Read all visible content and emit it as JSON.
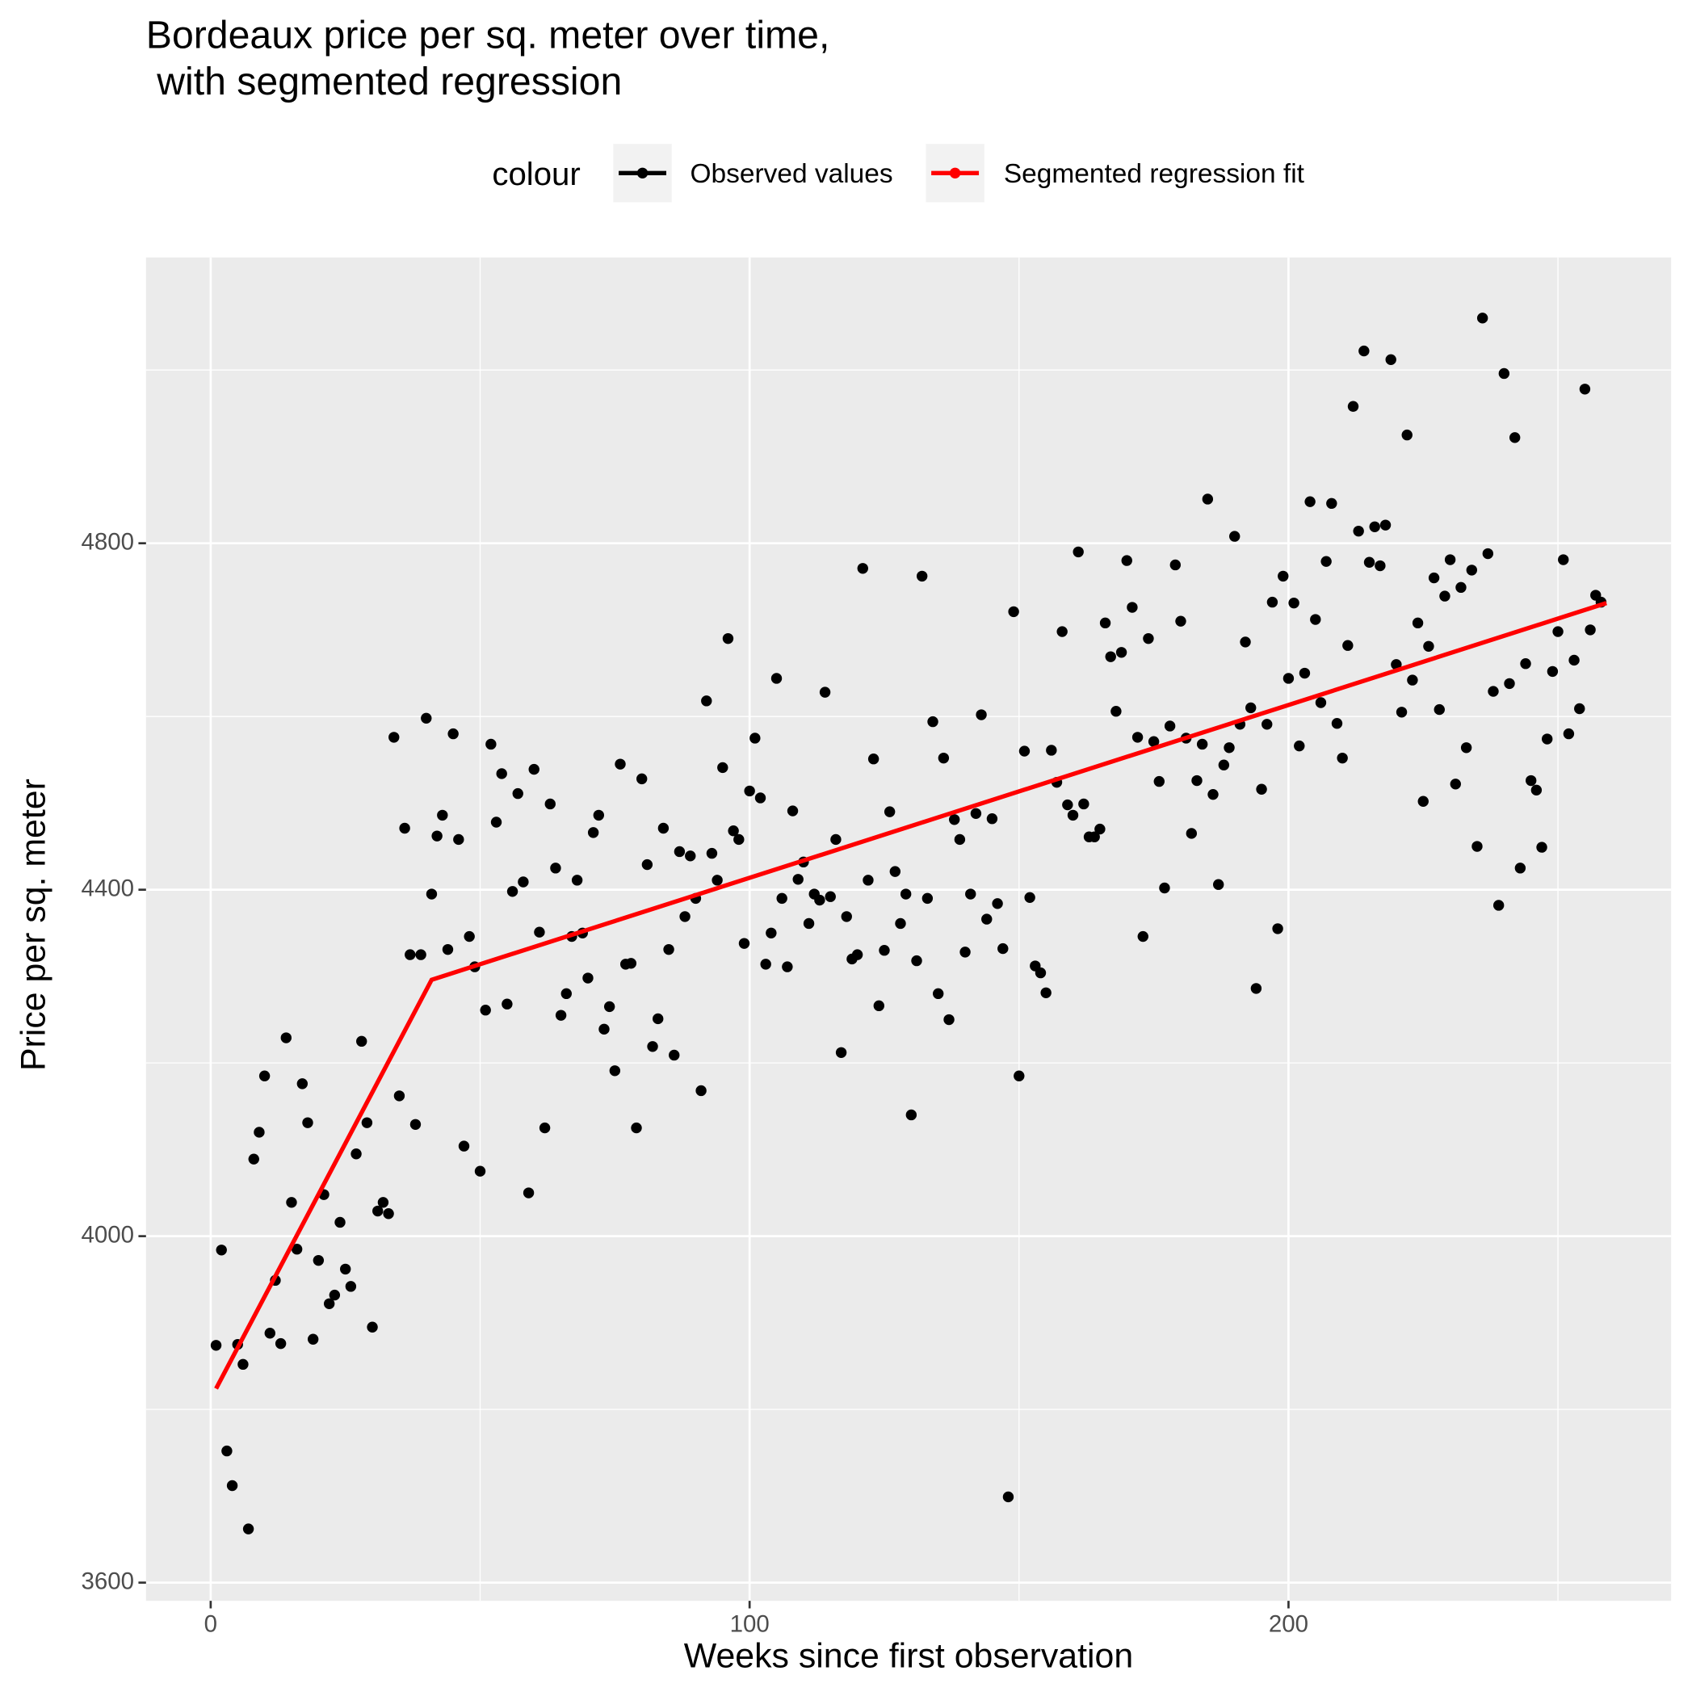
{
  "chart_data": {
    "type": "scatter",
    "title": [
      "Bordeaux price per sq. meter over time,",
      " with segmented regression"
    ],
    "x_label": "Weeks since first observation",
    "y_label": "Price per sq. meter",
    "legend_title": "colour",
    "legend_position": "top",
    "xlim": [
      -12,
      271
    ],
    "ylim": [
      3579,
      5130
    ],
    "xticks": [
      0,
      100,
      200
    ],
    "yticks": [
      3600,
      4000,
      4400,
      4800
    ],
    "x_minor_grid": [
      50,
      150,
      250
    ],
    "y_minor_grid": [
      3800,
      4200,
      4600,
      5000
    ],
    "grid": true,
    "series": [
      {
        "name": "Observed values",
        "color": "#000000",
        "mode": "points",
        "x": [
          1,
          2,
          3,
          4,
          5,
          6,
          7,
          8,
          9,
          10,
          11,
          12,
          13,
          14,
          15,
          16,
          17,
          18,
          19,
          20,
          21,
          22,
          23,
          24,
          25,
          26,
          27,
          28,
          29,
          30,
          31,
          32,
          33,
          34,
          35,
          36,
          37,
          38,
          39,
          40,
          41,
          42,
          43,
          44,
          45,
          46,
          47,
          48,
          49,
          50,
          51,
          52,
          53,
          54,
          55,
          56,
          57,
          58,
          59,
          60,
          61,
          62,
          63,
          64,
          65,
          66,
          67,
          68,
          69,
          70,
          71,
          72,
          73,
          74,
          75,
          76,
          77,
          78,
          79,
          80,
          81,
          82,
          83,
          84,
          85,
          86,
          87,
          88,
          89,
          90,
          91,
          92,
          93,
          94,
          95,
          96,
          97,
          98,
          99,
          100,
          101,
          102,
          103,
          104,
          105,
          106,
          107,
          108,
          109,
          110,
          111,
          112,
          113,
          114,
          115,
          116,
          117,
          118,
          119,
          120,
          121,
          122,
          123,
          124,
          125,
          126,
          127,
          128,
          129,
          130,
          131,
          132,
          133,
          134,
          135,
          136,
          137,
          138,
          139,
          140,
          141,
          142,
          143,
          144,
          145,
          146,
          147,
          148,
          149,
          150,
          151,
          152,
          153,
          154,
          155,
          156,
          157,
          158,
          159,
          160,
          161,
          162,
          163,
          164,
          165,
          166,
          167,
          168,
          169,
          170,
          171,
          172,
          173,
          174,
          175,
          176,
          177,
          178,
          179,
          180,
          181,
          182,
          183,
          184,
          185,
          186,
          187,
          188,
          189,
          190,
          191,
          192,
          193,
          194,
          195,
          196,
          197,
          198,
          199,
          200,
          201,
          202,
          203,
          204,
          205,
          206,
          207,
          208,
          209,
          210,
          211,
          212,
          213,
          214,
          215,
          216,
          217,
          218,
          219,
          220,
          221,
          222,
          223,
          224,
          225,
          226,
          227,
          228,
          229,
          230,
          231,
          232,
          233,
          234,
          235,
          236,
          237,
          238,
          239,
          240,
          241,
          242,
          243,
          244,
          245,
          246,
          247,
          248,
          249,
          250,
          251,
          252,
          253,
          254,
          255,
          256,
          257,
          258
        ],
        "values": [
          3874,
          3984,
          3752,
          3712,
          3875,
          3852,
          3662,
          4089,
          4120,
          4185,
          3888,
          3949,
          3876,
          4229,
          4039,
          3985,
          4176,
          4131,
          3881,
          3972,
          4048,
          3922,
          3932,
          4016,
          3962,
          3942,
          4095,
          4225,
          4131,
          3895,
          4029,
          4039,
          4026,
          4576,
          4162,
          4471,
          4325,
          4129,
          4325,
          4598,
          4395,
          4462,
          4486,
          4331,
          4580,
          4458,
          4104,
          4346,
          4311,
          4075,
          4261,
          4568,
          4478,
          4534,
          4268,
          4398,
          4511,
          4409,
          4050,
          4539,
          4351,
          4125,
          4499,
          4425,
          4255,
          4280,
          4346,
          4411,
          4350,
          4298,
          4466,
          4486,
          4239,
          4265,
          4191,
          4545,
          4314,
          4315,
          4125,
          4528,
          4429,
          4219,
          4251,
          4471,
          4331,
          4209,
          4444,
          4369,
          4439,
          4390,
          4168,
          4618,
          4442,
          4411,
          4541,
          4690,
          4468,
          4458,
          4338,
          4514,
          4575,
          4506,
          4314,
          4350,
          4644,
          4390,
          4311,
          4491,
          4412,
          4432,
          4361,
          4395,
          4388,
          4628,
          4392,
          4458,
          4212,
          4369,
          4320,
          4325,
          4771,
          4411,
          4551,
          4266,
          4330,
          4490,
          4421,
          4361,
          4395,
          4140,
          4318,
          4762,
          4390,
          4594,
          4280,
          4552,
          4250,
          4481,
          4458,
          4328,
          4395,
          4488,
          4602,
          4366,
          4482,
          4384,
          4332,
          3699,
          4721,
          4185,
          4560,
          4391,
          4312,
          4304,
          4281,
          4561,
          4524,
          4698,
          4498,
          4486,
          4790,
          4499,
          4461,
          4461,
          4470,
          4708,
          4669,
          4606,
          4674,
          4780,
          4726,
          4576,
          4346,
          4690,
          4571,
          4525,
          4402,
          4589,
          4775,
          4710,
          4575,
          4465,
          4526,
          4568,
          4851,
          4510,
          4406,
          4544,
          4564,
          4808,
          4591,
          4686,
          4610,
          4286,
          4516,
          4591,
          4732,
          4355,
          4762,
          4644,
          4731,
          4566,
          4650,
          4848,
          4712,
          4616,
          4779,
          4846,
          4592,
          4552,
          4682,
          4958,
          4814,
          5022,
          4778,
          4819,
          4774,
          4821,
          5012,
          4660,
          4605,
          4925,
          4642,
          4708,
          4502,
          4681,
          4760,
          4608,
          4739,
          4781,
          4522,
          4749,
          4564,
          4769,
          4450,
          5060,
          4788,
          4629,
          4382,
          4996,
          4638,
          4922,
          4425,
          4661,
          4526,
          4515,
          4449,
          4574,
          4652,
          4698,
          4781,
          4580,
          4665,
          4609,
          4978,
          4700,
          4740,
          4732
        ]
      },
      {
        "name": "Segmented regression fit",
        "color": "#ff0000",
        "mode": "line",
        "x": [
          1,
          41,
          259
        ],
        "values": [
          3824,
          4296,
          4731
        ]
      }
    ]
  }
}
